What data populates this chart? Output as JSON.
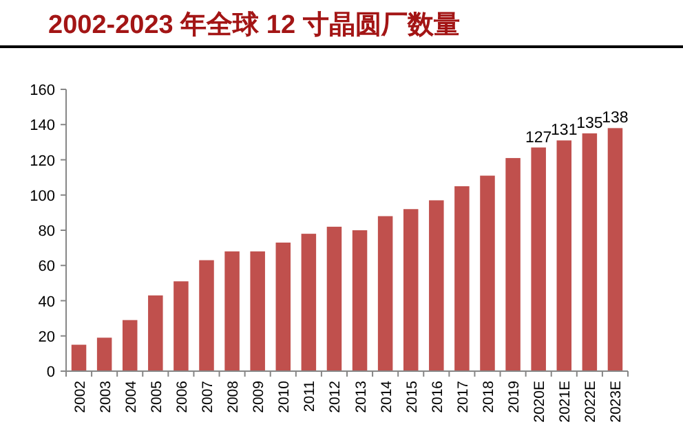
{
  "chart_data": {
    "type": "bar",
    "title": "2002-2023 年全球 12 寸晶圆厂数量",
    "categories": [
      "2002",
      "2003",
      "2004",
      "2005",
      "2006",
      "2007",
      "2008",
      "2009",
      "2010",
      "2011",
      "2012",
      "2013",
      "2014",
      "2015",
      "2016",
      "2017",
      "2018",
      "2019",
      "2020E",
      "2021E",
      "2022E",
      "2023E"
    ],
    "values": [
      15,
      19,
      29,
      43,
      51,
      63,
      68,
      68,
      73,
      78,
      82,
      80,
      88,
      92,
      97,
      105,
      111,
      121,
      127,
      131,
      135,
      138
    ],
    "value_labels": [
      null,
      null,
      null,
      null,
      null,
      null,
      null,
      null,
      null,
      null,
      null,
      null,
      null,
      null,
      null,
      null,
      null,
      null,
      "127",
      "131",
      "135",
      "138"
    ],
    "color": "#c0504d",
    "ylim": [
      0,
      160
    ],
    "yticks": [
      0,
      20,
      40,
      60,
      80,
      100,
      120,
      140,
      160
    ],
    "grid": false
  }
}
